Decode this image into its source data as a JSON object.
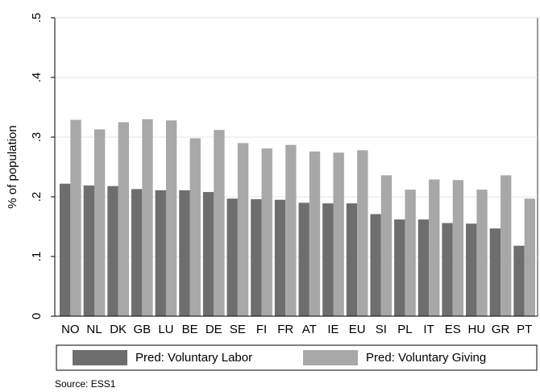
{
  "chart_data": {
    "type": "bar",
    "y_label": "% of population",
    "categories": [
      "NO",
      "NL",
      "DK",
      "GB",
      "LU",
      "BE",
      "DE",
      "SE",
      "FI",
      "FR",
      "AT",
      "IE",
      "EU",
      "SI",
      "PL",
      "IT",
      "ES",
      "HU",
      "GR",
      "PT"
    ],
    "series": [
      {
        "name": "Pred: Voluntary Labor",
        "color": "#6e6e6e",
        "values": [
          0.222,
          0.219,
          0.218,
          0.213,
          0.211,
          0.211,
          0.208,
          0.197,
          0.196,
          0.195,
          0.19,
          0.189,
          0.189,
          0.171,
          0.162,
          0.162,
          0.156,
          0.155,
          0.147,
          0.118
        ]
      },
      {
        "name": "Pred: Voluntary Giving",
        "color": "#a8a8a8",
        "values": [
          0.329,
          0.313,
          0.325,
          0.33,
          0.328,
          0.298,
          0.312,
          0.29,
          0.281,
          0.287,
          0.276,
          0.274,
          0.278,
          0.236,
          0.212,
          0.229,
          0.228,
          0.212,
          0.236,
          0.197
        ]
      }
    ],
    "ylim": [
      0,
      0.5
    ],
    "yticks": [
      0,
      {
        "value": 0.1,
        "label": ".1"
      },
      {
        "value": 0.2,
        "label": ".2"
      },
      {
        "value": 0.3,
        "label": ".3"
      },
      {
        "value": 0.4,
        "label": ".4"
      },
      {
        "value": 0.5,
        "label": ".5"
      }
    ],
    "grid": true,
    "source": "Source: ESS1"
  }
}
